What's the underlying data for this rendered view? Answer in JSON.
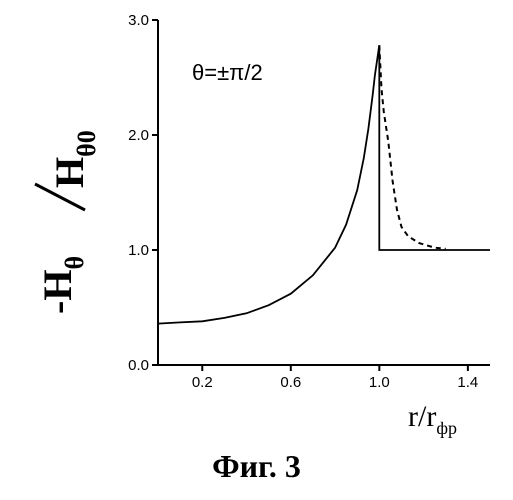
{
  "chart_data": {
    "type": "line",
    "annotation": "θ=±π/2",
    "ylabel": {
      "prefix": "-",
      "numerator": "H",
      "numerator_sub": "θ",
      "denominator": "H",
      "denominator_sub": "θ0"
    },
    "xlabel": {
      "base": "r/r",
      "sub": "фр"
    },
    "xlim": [
      0.0,
      1.5
    ],
    "ylim": [
      0.0,
      3.0
    ],
    "x_ticks": [
      "0.2",
      "0.6",
      "1.0",
      "1.4"
    ],
    "x_tick_values": [
      0.2,
      0.6,
      1.0,
      1.4
    ],
    "y_ticks": [
      "0.0",
      "1.0",
      "2.0",
      "3.0"
    ],
    "y_tick_values": [
      0.0,
      1.0,
      2.0,
      3.0
    ],
    "series": [
      {
        "style": "solid",
        "points": [
          [
            0.0,
            0.36
          ],
          [
            0.1,
            0.37
          ],
          [
            0.2,
            0.38
          ],
          [
            0.3,
            0.41
          ],
          [
            0.4,
            0.45
          ],
          [
            0.5,
            0.52
          ],
          [
            0.6,
            0.62
          ],
          [
            0.7,
            0.78
          ],
          [
            0.8,
            1.02
          ],
          [
            0.85,
            1.22
          ],
          [
            0.9,
            1.52
          ],
          [
            0.93,
            1.8
          ],
          [
            0.95,
            2.05
          ],
          [
            0.97,
            2.35
          ],
          [
            0.98,
            2.52
          ],
          [
            0.99,
            2.65
          ],
          [
            1.0,
            2.78
          ],
          [
            1.0,
            1.0
          ],
          [
            1.5,
            1.0
          ]
        ]
      },
      {
        "style": "dashed",
        "points": [
          [
            1.0,
            2.78
          ],
          [
            1.01,
            2.4
          ],
          [
            1.02,
            2.2
          ],
          [
            1.04,
            1.95
          ],
          [
            1.06,
            1.6
          ],
          [
            1.08,
            1.35
          ],
          [
            1.1,
            1.2
          ],
          [
            1.13,
            1.12
          ],
          [
            1.18,
            1.06
          ],
          [
            1.25,
            1.02
          ],
          [
            1.3,
            1.01
          ]
        ]
      }
    ]
  },
  "caption": "Фиг. 3"
}
